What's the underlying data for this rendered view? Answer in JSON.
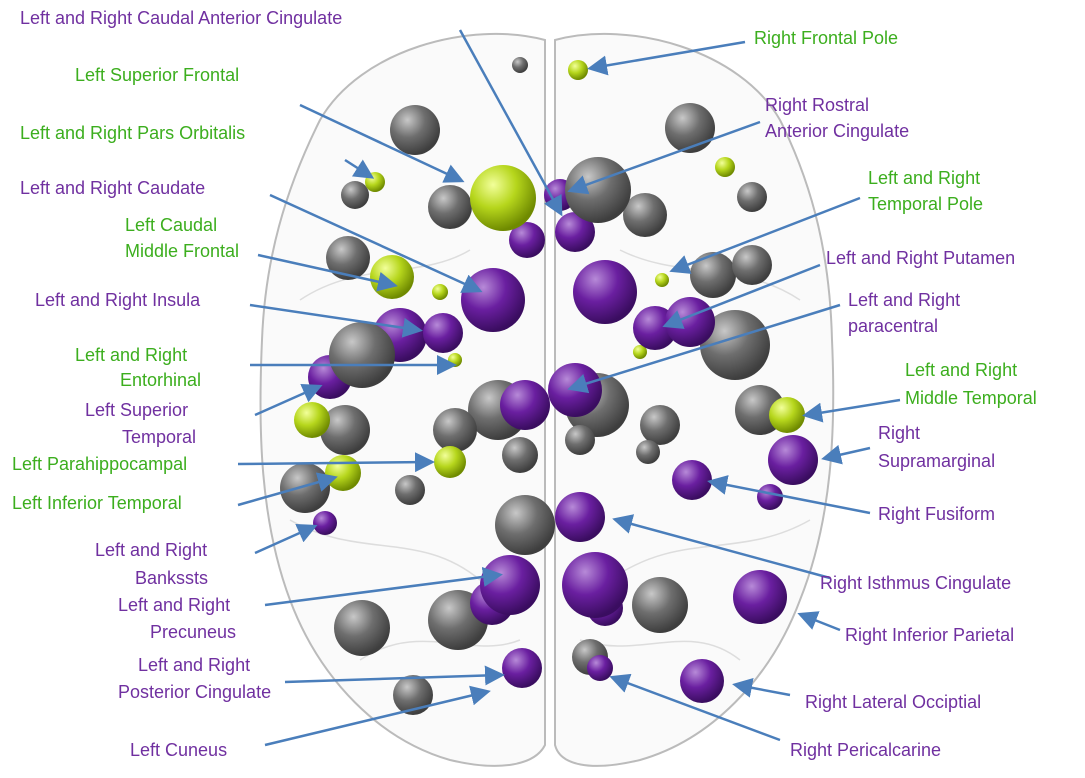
{
  "labels": [
    {
      "lines": [
        "Left and Right Caudal Anterior Cingulate"
      ]
    },
    {
      "lines": [
        "Right Frontal Pole"
      ]
    },
    {
      "lines": [
        "Left Superior Frontal"
      ]
    },
    {
      "lines": [
        "Right Rostral",
        "Anterior Cingulate"
      ]
    },
    {
      "lines": [
        "Left and Right Pars Orbitalis"
      ]
    },
    {
      "lines": [
        "Left and Right Caudate"
      ]
    },
    {
      "lines": [
        "Left and Right",
        "Temporal Pole"
      ]
    },
    {
      "lines": [
        "Left Caudal",
        "Middle Frontal"
      ]
    },
    {
      "lines": [
        "Left and Right Putamen"
      ]
    },
    {
      "lines": [
        "Left and Right Insula"
      ]
    },
    {
      "lines": [
        "Left and Right",
        "paracentral"
      ]
    },
    {
      "lines": [
        "Left and Right",
        "Entorhinal"
      ]
    },
    {
      "lines": [
        "Left Superior",
        "Temporal"
      ]
    },
    {
      "lines": [
        "Left and Right",
        "Middle Temporal"
      ]
    },
    {
      "lines": [
        "Right",
        "Supramarginal"
      ]
    },
    {
      "lines": [
        "Left Parahippocampal"
      ]
    },
    {
      "lines": [
        "Left Inferior Temporal"
      ]
    },
    {
      "lines": [
        "Right Fusiform"
      ]
    },
    {
      "lines": [
        "Left and Right",
        "Bankssts"
      ]
    },
    {
      "lines": [
        "Right Isthmus Cingulate"
      ]
    },
    {
      "lines": [
        "Left and Right",
        "Precuneus"
      ]
    },
    {
      "lines": [
        "Right Inferior Parietal"
      ]
    },
    {
      "lines": [
        "Left and Right",
        "Posterior Cingulate"
      ]
    },
    {
      "lines": [
        "Right Lateral Occiptial"
      ]
    },
    {
      "lines": [
        "Left Cuneus"
      ]
    },
    {
      "lines": [
        "Right Pericalcarine"
      ]
    }
  ]
}
